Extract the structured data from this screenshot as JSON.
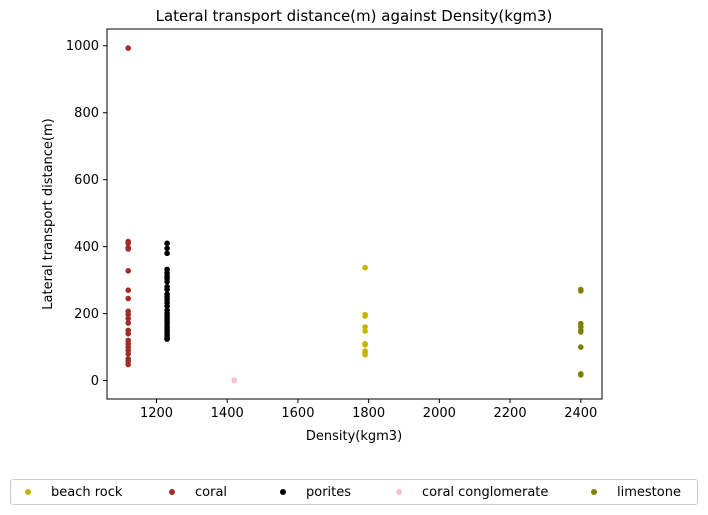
{
  "chart_data": {
    "type": "scatter",
    "title": "Lateral transport distance(m) against Density(kgm3)",
    "xlabel": "Density(kgm3)",
    "ylabel": "Lateral transport distance(m)",
    "xlim": [
      1060,
      2460
    ],
    "ylim": [
      -55,
      1050
    ],
    "xticks": [
      1200,
      1400,
      1600,
      1800,
      2000,
      2200,
      2400
    ],
    "yticks": [
      0,
      200,
      400,
      600,
      800,
      1000
    ],
    "grid": false,
    "legend_position": "bottom",
    "series": [
      {
        "name": "beach rock",
        "color": "#c8b400",
        "points": [
          [
            1790,
            337
          ],
          [
            1790,
            197
          ],
          [
            1790,
            193
          ],
          [
            1790,
            160
          ],
          [
            1790,
            148
          ],
          [
            1790,
            110
          ],
          [
            1790,
            107
          ],
          [
            1790,
            88
          ],
          [
            1790,
            82
          ],
          [
            1790,
            77
          ]
        ]
      },
      {
        "name": "coral",
        "color": "#a52a2a",
        "points": [
          [
            1120,
            993
          ],
          [
            1120,
            415
          ],
          [
            1120,
            410
          ],
          [
            1120,
            397
          ],
          [
            1120,
            393
          ],
          [
            1120,
            328
          ],
          [
            1120,
            270
          ],
          [
            1120,
            245
          ],
          [
            1120,
            207
          ],
          [
            1120,
            197
          ],
          [
            1120,
            185
          ],
          [
            1120,
            172
          ],
          [
            1120,
            150
          ],
          [
            1120,
            140
          ],
          [
            1120,
            120
          ],
          [
            1120,
            110
          ],
          [
            1120,
            100
          ],
          [
            1120,
            90
          ],
          [
            1120,
            80
          ],
          [
            1120,
            65
          ],
          [
            1120,
            58
          ],
          [
            1120,
            48
          ]
        ]
      },
      {
        "name": "porites",
        "color": "#000000",
        "points": [
          [
            1230,
            410
          ],
          [
            1230,
            395
          ],
          [
            1230,
            380
          ],
          [
            1230,
            332
          ],
          [
            1230,
            322
          ],
          [
            1230,
            312
          ],
          [
            1230,
            305
          ],
          [
            1230,
            295
          ],
          [
            1230,
            280
          ],
          [
            1230,
            272
          ],
          [
            1230,
            258
          ],
          [
            1230,
            250
          ],
          [
            1230,
            242
          ],
          [
            1230,
            232
          ],
          [
            1230,
            222
          ],
          [
            1230,
            210
          ],
          [
            1230,
            200
          ],
          [
            1230,
            192
          ],
          [
            1230,
            185
          ],
          [
            1230,
            178
          ],
          [
            1230,
            170
          ],
          [
            1230,
            160
          ],
          [
            1230,
            152
          ],
          [
            1230,
            145
          ],
          [
            1230,
            138
          ],
          [
            1230,
            132
          ],
          [
            1230,
            127
          ],
          [
            1230,
            124
          ]
        ]
      },
      {
        "name": "coral conglomerate",
        "color": "#ffc0cb",
        "points": [
          [
            1420,
            2
          ],
          [
            1420,
            0
          ]
        ]
      },
      {
        "name": "limestone",
        "color": "#808000",
        "points": [
          [
            2400,
            272
          ],
          [
            2400,
            268
          ],
          [
            2400,
            170
          ],
          [
            2400,
            160
          ],
          [
            2400,
            150
          ],
          [
            2400,
            145
          ],
          [
            2400,
            100
          ],
          [
            2400,
            20
          ],
          [
            2400,
            17
          ]
        ]
      }
    ]
  }
}
